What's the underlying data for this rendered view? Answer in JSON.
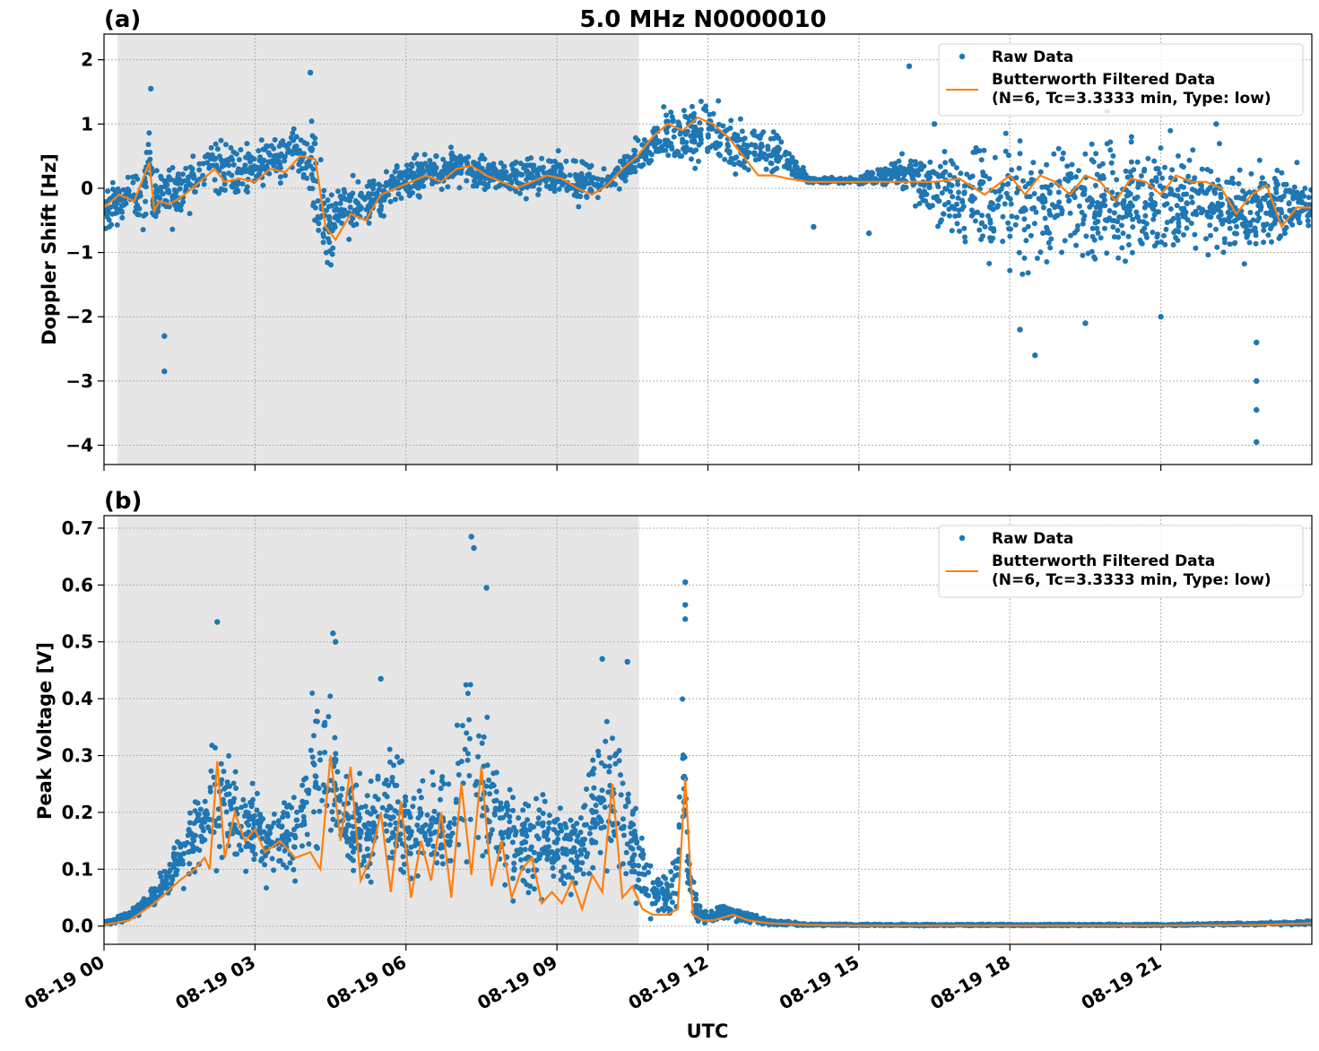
{
  "title": "5.0 MHz N0000010",
  "chart_data": [
    {
      "type": "scatter",
      "panel_label": "(a)",
      "ylabel": "Doppler Shift [Hz]",
      "xlabel": "",
      "xlim": [
        0,
        24
      ],
      "ylim": [
        -4.3,
        2.4
      ],
      "yticks": [
        2,
        1,
        0,
        -1,
        -2,
        -3,
        -4
      ],
      "ytick_labels": [
        "2",
        "1",
        "0",
        "−1",
        "−2",
        "−3",
        "−4"
      ],
      "night_shading_hours": [
        0.27,
        10.63
      ],
      "grid": true,
      "legend_position": "upper right",
      "legend": [
        {
          "kind": "marker",
          "label": "Raw Data",
          "color": "#1f77b4"
        },
        {
          "kind": "line",
          "label": "Butterworth Filtered Data",
          "label2": "(N=6, Tc=3.3333 min, Type: low)",
          "color": "#ff7f0e"
        }
      ],
      "series": [
        {
          "name": "Raw Data",
          "x_hours": [
            0,
            0.5,
            0.8,
            0.9,
            1.0,
            1.1,
            1.5,
            2.0,
            2.2,
            2.5,
            3.0,
            3.3,
            3.5,
            3.8,
            4.0,
            4.2,
            4.4,
            4.6,
            5.0,
            5.5,
            6.0,
            7.0,
            8.0,
            9.0,
            9.5,
            10.0,
            10.5,
            11.0,
            11.5,
            12.0,
            12.5,
            13.0,
            13.5,
            14.0,
            15.0,
            16.0,
            16.5,
            17.0,
            17.5,
            18.0,
            18.5,
            19.0,
            19.5,
            20.0,
            20.5,
            21.0,
            21.5,
            22.0,
            22.5,
            23.0,
            23.5,
            24.0
          ],
          "envelope_low": [
            -0.8,
            -0.6,
            -1.0,
            -0.4,
            -0.9,
            -0.7,
            -0.8,
            -0.4,
            -0.3,
            -0.5,
            -0.4,
            -0.2,
            -0.2,
            0.1,
            -0.3,
            -1.3,
            -1.75,
            -1.2,
            -1.1,
            -0.6,
            -0.3,
            -0.1,
            -0.2,
            -0.3,
            -0.5,
            -0.2,
            0.0,
            0.2,
            0.1,
            0.1,
            0.0,
            0.0,
            0.05,
            0.05,
            0.05,
            -0.2,
            -1.0,
            -1.3,
            -1.5,
            -1.8,
            -1.8,
            -1.6,
            -1.7,
            -1.8,
            -1.7,
            -1.6,
            -1.4,
            -1.3,
            -1.5,
            -1.4,
            -1.2,
            -1.0
          ],
          "envelope_high": [
            0.2,
            0.3,
            0.5,
            1.4,
            0.4,
            0.5,
            0.7,
            1.0,
            1.2,
            1.0,
            1.0,
            1.1,
            1.0,
            1.2,
            1.0,
            1.7,
            0.3,
            0.3,
            0.4,
            0.5,
            0.6,
            0.7,
            0.6,
            0.7,
            0.7,
            0.4,
            0.8,
            1.3,
            1.5,
            1.6,
            1.4,
            1.2,
            0.9,
            0.2,
            0.2,
            0.7,
            0.8,
            1.0,
            1.2,
            1.4,
            1.3,
            1.3,
            1.3,
            1.4,
            1.3,
            1.2,
            1.0,
            0.9,
            0.8,
            0.7,
            0.6,
            0.5
          ],
          "outliers": [
            [
              0.93,
              1.55
            ],
            [
              1.2,
              -2.3
            ],
            [
              1.2,
              -2.85
            ],
            [
              4.1,
              1.8
            ],
            [
              6.6,
              0.5
            ],
            [
              14.1,
              -0.6
            ],
            [
              15.2,
              -0.7
            ],
            [
              16.0,
              1.9
            ],
            [
              16.5,
              1.0
            ],
            [
              18.2,
              -2.2
            ],
            [
              18.5,
              -2.6
            ],
            [
              19.5,
              -2.1
            ],
            [
              21.0,
              -2.0
            ],
            [
              22.1,
              1.0
            ],
            [
              22.9,
              -2.4
            ],
            [
              22.9,
              -3.0
            ],
            [
              22.9,
              -3.45
            ],
            [
              22.9,
              -3.95
            ]
          ]
        },
        {
          "name": "Butterworth Filtered Data",
          "x_hours": [
            0,
            0.3,
            0.6,
            0.9,
            1.0,
            1.1,
            1.3,
            1.6,
            1.9,
            2.2,
            2.4,
            2.7,
            3.0,
            3.3,
            3.6,
            3.9,
            4.2,
            4.4,
            4.6,
            4.9,
            5.2,
            5.5,
            5.8,
            6.1,
            6.4,
            6.7,
            7.0,
            7.3,
            7.6,
            7.9,
            8.2,
            8.5,
            8.8,
            9.1,
            9.4,
            9.7,
            10.0,
            10.3,
            10.6,
            10.9,
            11.2,
            11.5,
            11.8,
            12.1,
            12.4,
            12.7,
            13.0,
            13.3,
            13.6,
            14.0,
            14.5,
            15.0,
            15.5,
            16.0,
            16.5,
            17.0,
            17.5,
            18.0,
            18.3,
            18.6,
            18.9,
            19.2,
            19.5,
            19.8,
            20.1,
            20.4,
            20.7,
            21.0,
            21.3,
            21.6,
            21.9,
            22.2,
            22.5,
            22.8,
            23.1,
            23.4,
            23.7,
            24.0
          ],
          "y": [
            -0.3,
            -0.1,
            -0.2,
            0.4,
            -0.35,
            -0.2,
            -0.25,
            -0.1,
            0.1,
            0.3,
            0.1,
            0.15,
            0.1,
            0.3,
            0.25,
            0.5,
            0.45,
            -0.6,
            -0.8,
            -0.4,
            -0.5,
            -0.1,
            0.0,
            0.1,
            0.2,
            0.1,
            0.3,
            0.35,
            0.2,
            0.1,
            0.0,
            0.1,
            0.2,
            0.15,
            0.0,
            -0.1,
            0.05,
            0.3,
            0.5,
            0.8,
            1.0,
            0.9,
            1.1,
            1.0,
            0.8,
            0.5,
            0.2,
            0.2,
            0.15,
            0.1,
            0.1,
            0.1,
            0.1,
            0.1,
            0.1,
            0.15,
            -0.1,
            0.2,
            -0.1,
            0.2,
            0.1,
            -0.1,
            0.2,
            0.1,
            -0.2,
            0.15,
            0.1,
            -0.1,
            0.2,
            0.1,
            0.1,
            0.0,
            -0.4,
            -0.1,
            0.05,
            -0.6,
            -0.3,
            -0.3
          ]
        }
      ]
    },
    {
      "type": "scatter",
      "panel_label": "(b)",
      "ylabel": "Peak Voltage [V]",
      "xlabel": "UTC",
      "xlim": [
        0,
        24
      ],
      "ylim": [
        -0.032,
        0.722
      ],
      "yticks": [
        0.0,
        0.1,
        0.2,
        0.3,
        0.4,
        0.5,
        0.6,
        0.7
      ],
      "ytick_labels": [
        "0.0",
        "0.1",
        "0.2",
        "0.3",
        "0.4",
        "0.5",
        "0.6",
        "0.7"
      ],
      "xticks": [
        0,
        3,
        6,
        9,
        12,
        15,
        18,
        21
      ],
      "xtick_labels": [
        "08-19 00",
        "08-19 03",
        "08-19 06",
        "08-19 09",
        "08-19 12",
        "08-19 15",
        "08-19 18",
        "08-19 21"
      ],
      "night_shading_hours": [
        0.27,
        10.63
      ],
      "grid": true,
      "legend_position": "upper right",
      "legend": [
        {
          "kind": "marker",
          "label": "Raw Data",
          "color": "#1f77b4"
        },
        {
          "kind": "line",
          "label": "Butterworth Filtered Data",
          "label2": "(N=6, Tc=3.3333 min, Type: low)",
          "color": "#ff7f0e"
        }
      ],
      "series": [
        {
          "name": "Raw Data",
          "x_hours": [
            0,
            0.5,
            1.0,
            1.2,
            1.5,
            1.8,
            2.0,
            2.2,
            2.4,
            2.6,
            3.0,
            3.3,
            3.6,
            4.0,
            4.2,
            4.4,
            4.6,
            4.8,
            5.0,
            5.3,
            5.6,
            6.0,
            6.3,
            6.6,
            6.9,
            7.2,
            7.4,
            7.6,
            7.9,
            8.2,
            8.5,
            8.8,
            9.1,
            9.4,
            9.7,
            10.0,
            10.3,
            10.6,
            10.9,
            11.2,
            11.4,
            11.5,
            11.6,
            11.8,
            12.0,
            12.3,
            12.6,
            13.0,
            13.5,
            14.0,
            15.0,
            18.0,
            21.0,
            23.0,
            24.0
          ],
          "envelope_low": [
            0.0,
            0.005,
            0.02,
            0.03,
            0.05,
            0.06,
            0.07,
            0.05,
            0.06,
            0.05,
            0.05,
            0.04,
            0.05,
            0.05,
            0.05,
            0.05,
            0.06,
            0.04,
            0.04,
            0.03,
            0.03,
            0.03,
            0.03,
            0.03,
            0.03,
            0.02,
            0.03,
            0.03,
            0.03,
            0.02,
            0.02,
            0.02,
            0.03,
            0.02,
            0.03,
            0.02,
            0.02,
            0.0,
            0.0,
            0.0,
            0.0,
            0.0,
            0.0,
            0.0,
            0.0,
            0.0,
            0.0,
            0.0,
            0.0,
            0.0,
            0.0,
            0.0,
            0.0,
            0.0,
            0.0
          ],
          "envelope_high": [
            0.01,
            0.03,
            0.08,
            0.12,
            0.18,
            0.25,
            0.3,
            0.45,
            0.38,
            0.3,
            0.28,
            0.25,
            0.27,
            0.35,
            0.5,
            0.51,
            0.45,
            0.32,
            0.3,
            0.3,
            0.4,
            0.3,
            0.3,
            0.35,
            0.32,
            0.6,
            0.5,
            0.45,
            0.3,
            0.25,
            0.27,
            0.3,
            0.25,
            0.25,
            0.35,
            0.45,
            0.43,
            0.25,
            0.12,
            0.12,
            0.2,
            0.55,
            0.2,
            0.05,
            0.03,
            0.05,
            0.04,
            0.02,
            0.01,
            0.005,
            0.004,
            0.004,
            0.004,
            0.008,
            0.012
          ],
          "outliers": [
            [
              2.25,
              0.535
            ],
            [
              4.55,
              0.515
            ],
            [
              4.6,
              0.5
            ],
            [
              5.5,
              0.435
            ],
            [
              7.3,
              0.685
            ],
            [
              7.35,
              0.665
            ],
            [
              7.6,
              0.595
            ],
            [
              9.9,
              0.47
            ],
            [
              10.4,
              0.465
            ],
            [
              11.55,
              0.605
            ],
            [
              11.55,
              0.565
            ],
            [
              11.55,
              0.54
            ]
          ]
        },
        {
          "name": "Butterworth Filtered Data",
          "x_hours": [
            0,
            0.5,
            1.0,
            1.5,
            1.8,
            2.0,
            2.1,
            2.25,
            2.4,
            2.6,
            2.8,
            3.0,
            3.2,
            3.5,
            3.8,
            4.1,
            4.3,
            4.5,
            4.7,
            4.9,
            5.1,
            5.3,
            5.5,
            5.7,
            5.9,
            6.1,
            6.3,
            6.5,
            6.7,
            6.9,
            7.1,
            7.3,
            7.5,
            7.7,
            7.9,
            8.1,
            8.3,
            8.5,
            8.7,
            8.9,
            9.1,
            9.3,
            9.5,
            9.7,
            9.9,
            10.1,
            10.3,
            10.5,
            10.7,
            10.9,
            11.2,
            11.4,
            11.55,
            11.7,
            11.9,
            12.1,
            12.3,
            12.5,
            12.8,
            13.2,
            14.0,
            15.0,
            18.0,
            21.0,
            23.0,
            24.0
          ],
          "y": [
            0.002,
            0.01,
            0.04,
            0.08,
            0.1,
            0.12,
            0.1,
            0.29,
            0.12,
            0.2,
            0.15,
            0.17,
            0.13,
            0.15,
            0.12,
            0.13,
            0.1,
            0.3,
            0.15,
            0.28,
            0.08,
            0.12,
            0.2,
            0.06,
            0.22,
            0.05,
            0.15,
            0.08,
            0.2,
            0.05,
            0.25,
            0.09,
            0.28,
            0.07,
            0.15,
            0.05,
            0.1,
            0.12,
            0.04,
            0.06,
            0.04,
            0.08,
            0.03,
            0.09,
            0.06,
            0.25,
            0.05,
            0.07,
            0.03,
            0.02,
            0.02,
            0.03,
            0.26,
            0.02,
            0.01,
            0.01,
            0.015,
            0.02,
            0.01,
            0.005,
            0.002,
            0.001,
            0.001,
            0.001,
            0.002,
            0.005
          ]
        }
      ]
    }
  ]
}
